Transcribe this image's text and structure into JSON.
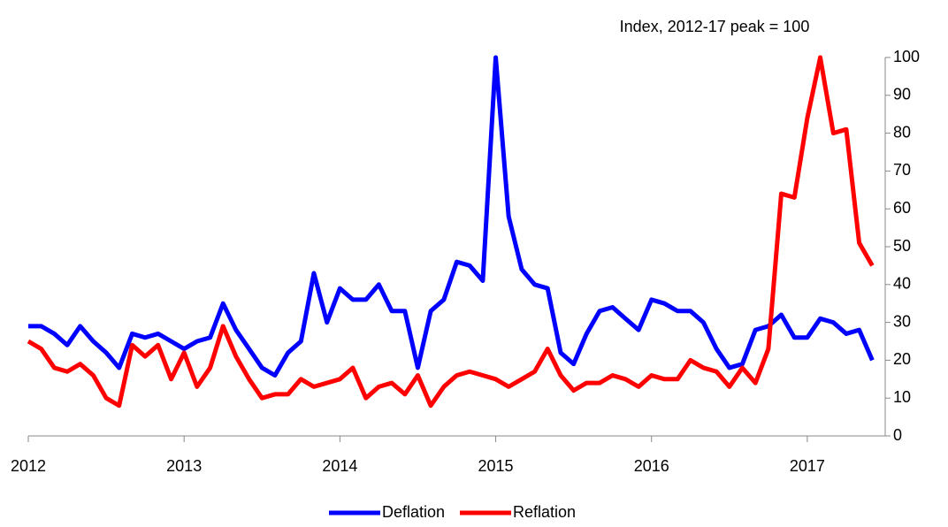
{
  "chart_data": {
    "type": "line",
    "title": "Index, 2012-17 peak = 100",
    "x": [
      2012,
      2012.083,
      2012.167,
      2012.25,
      2012.333,
      2012.417,
      2012.5,
      2012.583,
      2012.667,
      2012.75,
      2012.833,
      2012.917,
      2013,
      2013.083,
      2013.167,
      2013.25,
      2013.333,
      2013.417,
      2013.5,
      2013.583,
      2013.667,
      2013.75,
      2013.833,
      2013.917,
      2014,
      2014.083,
      2014.167,
      2014.25,
      2014.333,
      2014.417,
      2014.5,
      2014.583,
      2014.667,
      2014.75,
      2014.833,
      2014.917,
      2015,
      2015.083,
      2015.167,
      2015.25,
      2015.333,
      2015.417,
      2015.5,
      2015.583,
      2015.667,
      2015.75,
      2015.833,
      2015.917,
      2016,
      2016.083,
      2016.167,
      2016.25,
      2016.333,
      2016.417,
      2016.5,
      2016.583,
      2016.667,
      2016.75,
      2016.833,
      2016.917,
      2017,
      2017.083,
      2017.167,
      2017.25,
      2017.333,
      2017.417
    ],
    "series": [
      {
        "name": "Deflation",
        "color": "#0000ff",
        "values": [
          29,
          29,
          27,
          24,
          29,
          25,
          22,
          18,
          27,
          26,
          27,
          25,
          23,
          25,
          26,
          35,
          28,
          23,
          18,
          16,
          22,
          25,
          43,
          30,
          39,
          36,
          36,
          40,
          33,
          33,
          18,
          33,
          36,
          46,
          45,
          41,
          100,
          58,
          44,
          40,
          39,
          22,
          19,
          27,
          33,
          34,
          31,
          28,
          36,
          35,
          33,
          33,
          30,
          23,
          18,
          19,
          28,
          29,
          32,
          26,
          26,
          31,
          30,
          27,
          28,
          20
        ]
      },
      {
        "name": "Reflation",
        "color": "#ff0000",
        "values": [
          25,
          23,
          18,
          17,
          19,
          16,
          10,
          8,
          24,
          21,
          24,
          15,
          22,
          13,
          18,
          29,
          21,
          15,
          10,
          11,
          11,
          15,
          13,
          14,
          15,
          18,
          10,
          13,
          14,
          11,
          16,
          8,
          13,
          16,
          17,
          16,
          15,
          13,
          15,
          17,
          23,
          16,
          12,
          14,
          14,
          16,
          15,
          13,
          16,
          15,
          15,
          20,
          18,
          17,
          13,
          18,
          14,
          23,
          64,
          63,
          84,
          100,
          80,
          81,
          51,
          45
        ]
      }
    ],
    "xlim": [
      2012,
      2017.5
    ],
    "xticks": [
      2012,
      2013,
      2014,
      2015,
      2016,
      2017
    ],
    "ylim": [
      0,
      100
    ],
    "yticks": [
      0,
      10,
      20,
      30,
      40,
      50,
      60,
      70,
      80,
      90,
      100
    ],
    "legend": "bottom"
  }
}
